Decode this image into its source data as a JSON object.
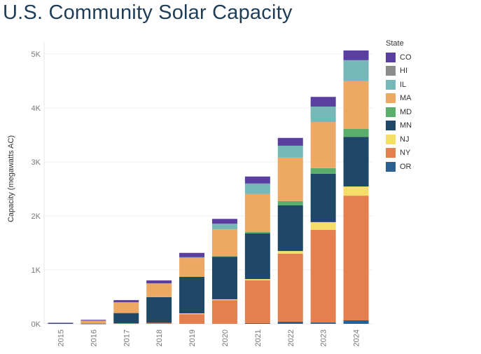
{
  "title": "U.S. Community Solar Capacity",
  "chart_data": {
    "type": "bar",
    "stacked": true,
    "title": "U.S. Community Solar Capacity",
    "xlabel": "",
    "ylabel": "Capacity (megawatts AC)",
    "ylim": [
      0,
      5000
    ],
    "yticks": [
      "0K",
      "1K",
      "2K",
      "3K",
      "4K",
      "5K"
    ],
    "grid": true,
    "legend_title": "State",
    "legend_position": "right",
    "categories": [
      "2015",
      "2016",
      "2017",
      "2018",
      "2019",
      "2020",
      "2021",
      "2022",
      "2023",
      "2024"
    ],
    "series": [
      {
        "name": "OR",
        "color": "#2a6190",
        "values": [
          0,
          0,
          0,
          0,
          0,
          0,
          15,
          40,
          25,
          65
        ]
      },
      {
        "name": "NY",
        "color": "#e4804f",
        "values": [
          0,
          0,
          10,
          20,
          180,
          440,
          790,
          1260,
          1715,
          2310
        ]
      },
      {
        "name": "NJ",
        "color": "#f5dd6a",
        "values": [
          0,
          0,
          0,
          0,
          15,
          15,
          25,
          50,
          145,
          170
        ]
      },
      {
        "name": "MN",
        "color": "#1f4866",
        "values": [
          15,
          5,
          190,
          475,
          675,
          790,
          845,
          845,
          895,
          920
        ]
      },
      {
        "name": "MD",
        "color": "#5aad6a",
        "values": [
          0,
          0,
          0,
          0,
          0,
          10,
          30,
          80,
          105,
          145
        ]
      },
      {
        "name": "MA",
        "color": "#eda964",
        "values": [
          0,
          55,
          200,
          255,
          350,
          495,
          700,
          805,
          855,
          885
        ]
      },
      {
        "name": "IL",
        "color": "#76b7b8",
        "values": [
          0,
          0,
          0,
          0,
          15,
          105,
          195,
          220,
          285,
          390
        ]
      },
      {
        "name": "HI",
        "color": "#8c8c8c",
        "values": [
          0,
          0,
          0,
          0,
          0,
          0,
          0,
          0,
          0,
          0
        ]
      },
      {
        "name": "CO",
        "color": "#5b3fa0",
        "values": [
          5,
          15,
          40,
          55,
          80,
          90,
          130,
          145,
          180,
          180
        ]
      }
    ]
  },
  "legend_order": [
    "CO",
    "HI",
    "IL",
    "MA",
    "MD",
    "MN",
    "NJ",
    "NY",
    "OR"
  ]
}
